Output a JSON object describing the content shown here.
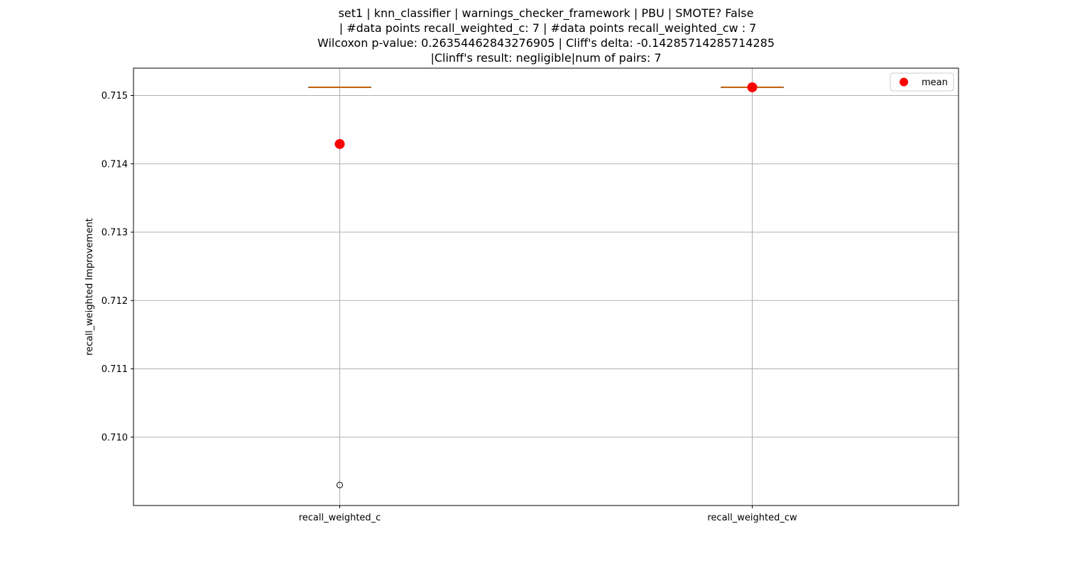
{
  "chart_data": {
    "type": "box",
    "title_lines": [
      "set1 | knn_classifier | warnings_checker_framework | PBU | SMOTE? False",
      " | #data points recall_weighted_c: 7 | #data points recall_weighted_cw : 7",
      "Wilcoxon p-value: 0.26354462843276905 | Cliff's delta: -0.14285714285714285",
      "|Clinff's result: negligible|num of pairs: 7"
    ],
    "ylabel": "recall_weighted Improvement",
    "xlabel": "",
    "categories": [
      "recall_weighted_c",
      "recall_weighted_cw"
    ],
    "ylim": [
      0.709,
      0.7154
    ],
    "yticks": [
      "0.710",
      "0.711",
      "0.712",
      "0.713",
      "0.714",
      "0.715"
    ],
    "yticks_values": [
      0.71,
      0.711,
      0.712,
      0.713,
      0.714,
      0.715
    ],
    "grid": true,
    "series": [
      {
        "category": "recall_weighted_c",
        "box": {
          "q1": 0.71512,
          "median": 0.71512,
          "q3": 0.71512,
          "whisker_low": 0.71512,
          "whisker_high": 0.71512
        },
        "outliers": [
          0.7093
        ],
        "mean": 0.71429
      },
      {
        "category": "recall_weighted_cw",
        "box": {
          "q1": 0.71512,
          "median": 0.71512,
          "q3": 0.71512,
          "whisker_low": 0.71512,
          "whisker_high": 0.71512
        },
        "outliers": [],
        "mean": 0.71512
      }
    ],
    "legend": {
      "position": "top-right",
      "entries": [
        {
          "label": "mean",
          "color": "#ff0000"
        }
      ]
    },
    "colors": {
      "median": "#ff7f0e",
      "mean": "#ff0000",
      "grid": "#b0b0b0",
      "box": "#000000"
    }
  }
}
